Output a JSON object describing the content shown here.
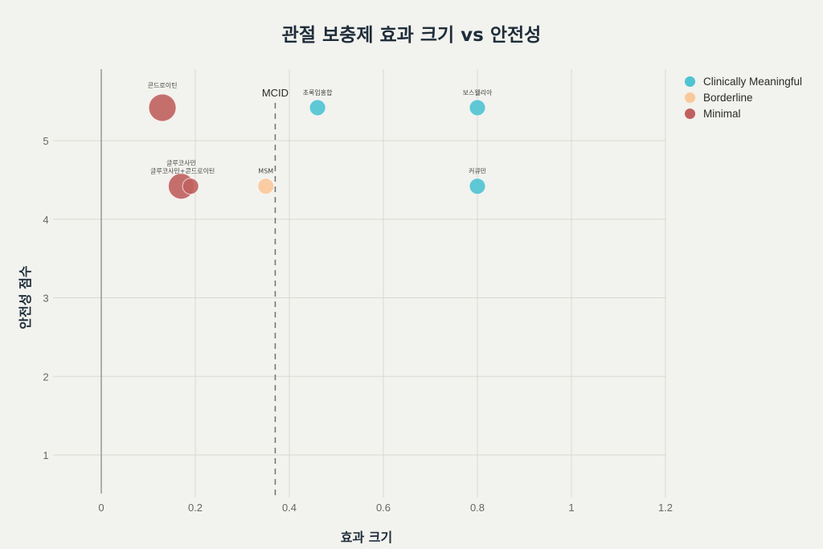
{
  "title": "관절 보충제 효과 크기 vs 안전성",
  "colors": {
    "background": "#f2f2ee",
    "grid": "#d9d9d4",
    "zero_line": "#8a8a8a",
    "mcid_line": "#707070",
    "Clinically Meaningful": "#4fc3d2",
    "Borderline": "#f9c89b",
    "Minimal": "#c0605e"
  },
  "legend": {
    "items": [
      {
        "label": "Clinically Meaningful",
        "color": "#4fc3d2"
      },
      {
        "label": "Borderline",
        "color": "#f9c89b"
      },
      {
        "label": "Minimal",
        "color": "#c0605e"
      }
    ]
  },
  "chart_data": {
    "type": "scatter",
    "title": "관절 보충제 효과 크기 vs 안전성",
    "xlabel": "효과 크기",
    "ylabel": "안전성 점수",
    "xlim": [
      -0.0,
      1.2
    ],
    "ylim": [
      0.54,
      5.91
    ],
    "xticks": [
      0,
      0.2,
      0.4,
      0.6,
      0.8,
      1,
      1.2
    ],
    "xtick_labels": [
      "0",
      "0.2",
      "0.4",
      "0.6",
      "0.8",
      "1",
      "1.2"
    ],
    "yticks": [
      1,
      2,
      3,
      4,
      5
    ],
    "ytick_labels": [
      "1",
      "2",
      "3",
      "4",
      "5"
    ],
    "grid": true,
    "legend_position": "right-top",
    "reference_lines": [
      {
        "type": "vertical",
        "x": 0.37,
        "style": "dashed",
        "label": "MCID"
      }
    ],
    "points": [
      {
        "name": "콘드로이틴",
        "x": 0.13,
        "y": 5.42,
        "category": "Minimal",
        "size": 17
      },
      {
        "name": "글루코사민",
        "x": 0.17,
        "y": 4.42,
        "category": "Minimal",
        "size": 16
      },
      {
        "name": "글루코사민+콘드로이틴",
        "x": 0.19,
        "y": 4.42,
        "category": "Minimal",
        "size": 10
      },
      {
        "name": "MSM",
        "x": 0.35,
        "y": 4.42,
        "category": "Borderline",
        "size": 10
      },
      {
        "name": "초록입홍합",
        "x": 0.46,
        "y": 5.42,
        "category": "Clinically Meaningful",
        "size": 10
      },
      {
        "name": "보스웰리아",
        "x": 0.8,
        "y": 5.42,
        "category": "Clinically Meaningful",
        "size": 10
      },
      {
        "name": "커큐민",
        "x": 0.8,
        "y": 4.42,
        "category": "Clinically Meaningful",
        "size": 10
      }
    ]
  }
}
